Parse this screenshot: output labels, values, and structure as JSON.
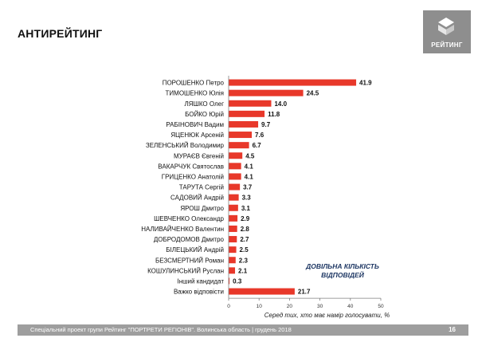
{
  "page": {
    "title": "АНТИРЕЙТИНГ",
    "logo_text": "РЕЙТИНГ",
    "note": "ДОВІЛЬНА КІЛЬКІСТЬ ВІДПОВІДЕЙ",
    "footer": "Спеціальний проект групи Рейтинг \"ПОРТРЕТИ РЕГІОНІВ\". Волинська область | грудень 2018",
    "page_number": "16"
  },
  "colors": {
    "bar": "#e8382a",
    "footer": "#9e9e9e",
    "logo": "#8e8e8e",
    "note": "#1f3864"
  },
  "chart_data": {
    "type": "bar",
    "orientation": "horizontal",
    "categories": [
      "ПОРОШЕНКО Петро",
      "ТИМОШЕНКО Юлія",
      "ЛЯШКО Олег",
      "БОЙКО Юрій",
      "РАБІНОВИЧ Вадим",
      "ЯЦЕНЮК Арсеній",
      "ЗЕЛЕНСЬКИЙ Володимир",
      "МУРАЄВ Євгеній",
      "ВАКАРЧУК Святослав",
      "ГРИЦЕНКО Анатолій",
      "ТАРУТА Сергій",
      "САДОВИЙ Андрій",
      "ЯРОШ Дмитро",
      "ШЕВЧЕНКО Олександр",
      "НАЛИВАЙЧЕНКО Валентин",
      "ДОБРОДОМОВ Дмитро",
      "БІЛЕЦЬКИЙ Андрій",
      "БЕЗСМЕРТНИЙ Роман",
      "КОШУЛИНСЬКИЙ Руслан",
      "Інший кандидат",
      "Важко відповісти"
    ],
    "values": [
      41.9,
      24.5,
      14.0,
      11.8,
      9.7,
      7.6,
      6.7,
      4.5,
      4.1,
      4.1,
      3.7,
      3.3,
      3.1,
      2.9,
      2.8,
      2.7,
      2.5,
      2.3,
      2.1,
      0.3,
      21.7
    ],
    "value_labels": [
      "41.9",
      "24.5",
      "14.0",
      "11.8",
      "9.7",
      "7.6",
      "6.7",
      "4.5",
      "4.1",
      "4.1",
      "3.7",
      "3.3",
      "3.1",
      "2.9",
      "2.8",
      "2.7",
      "2.5",
      "2.3",
      "2.1",
      "0.3",
      "21.7"
    ],
    "xlabel": "Серед тих, хто має намір голосувати, %",
    "xlim": [
      0,
      50
    ],
    "xticks": [
      "0",
      "10",
      "20",
      "30",
      "40",
      "50"
    ],
    "grid": false,
    "legend": "none"
  }
}
